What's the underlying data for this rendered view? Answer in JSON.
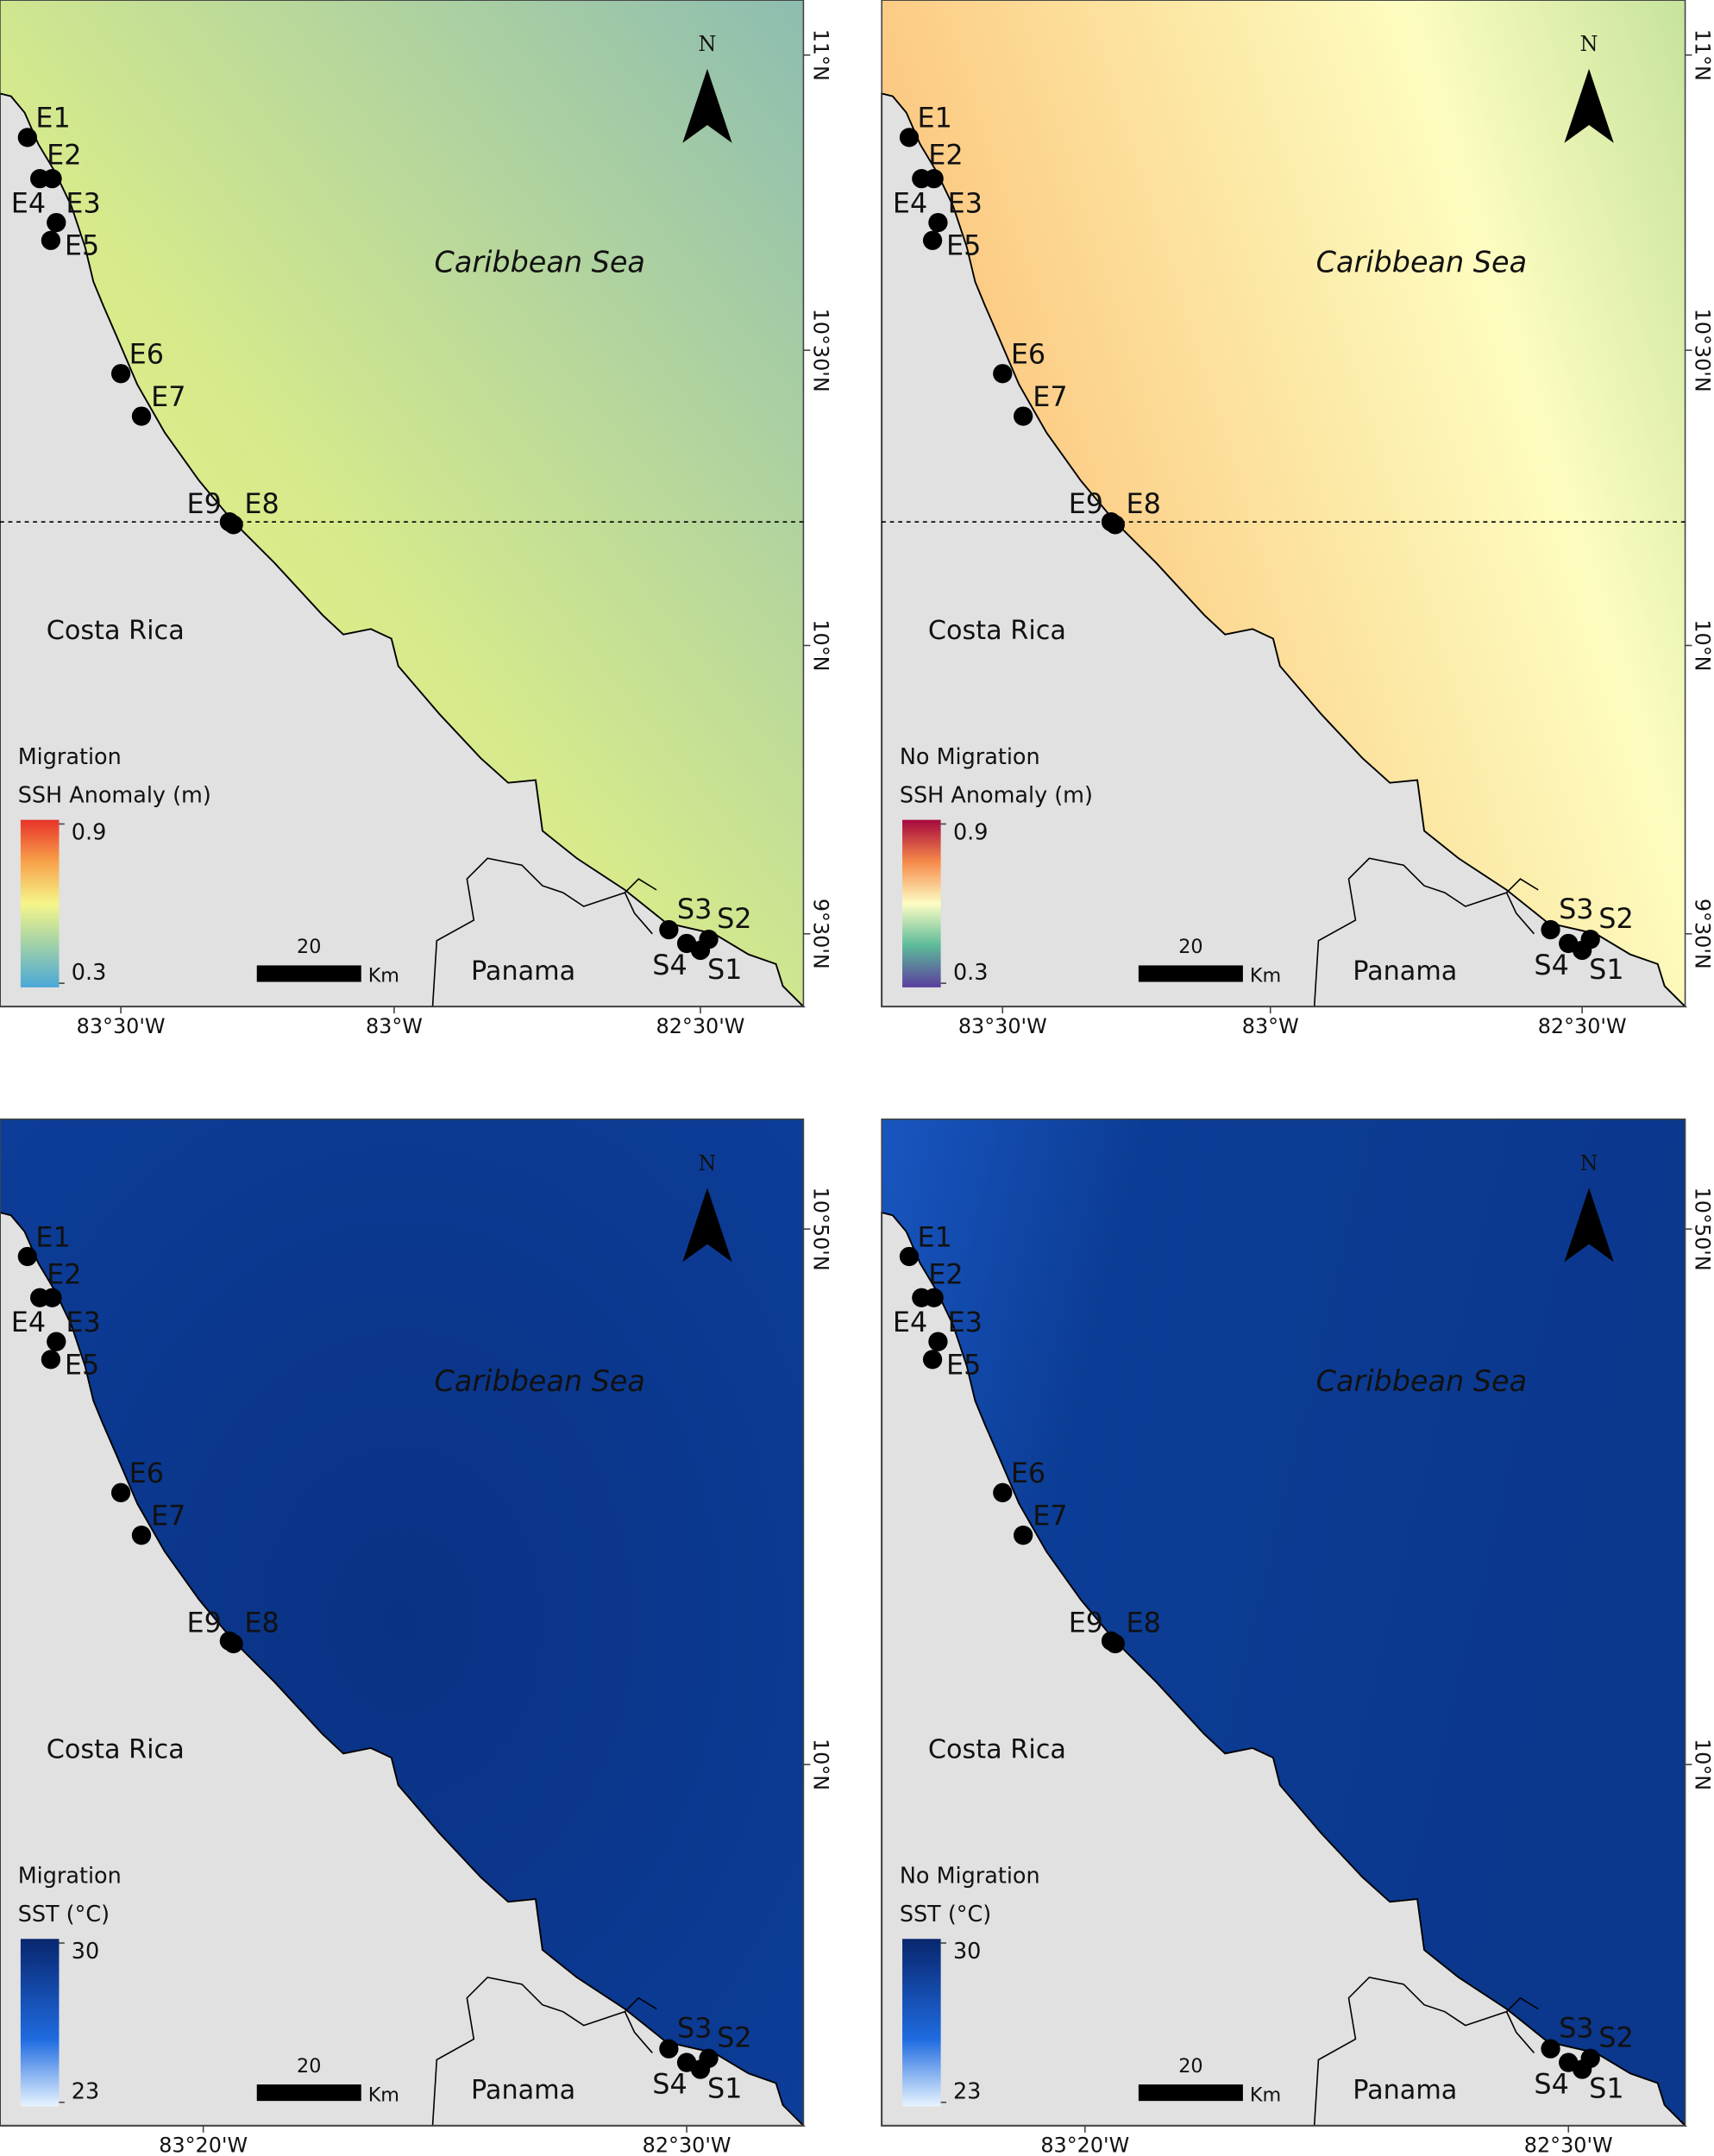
{
  "panels": [
    {
      "legend_title": "Migration",
      "variable": "SSH Anomaly (m)",
      "colorbar_max": 0.9,
      "colorbar_min": 0.3,
      "x_ticks": [
        "83°30'W",
        "83°W",
        "82°30'W"
      ],
      "y_ticks": [
        "11°N",
        "10°30'N",
        "10°N",
        "9°30'N"
      ]
    },
    {
      "legend_title": "No Migration",
      "variable": "SSH Anomaly (m)",
      "colorbar_max": 0.9,
      "colorbar_min": 0.3,
      "x_ticks": [
        "83°30'W",
        "83°W",
        "82°30'W"
      ],
      "y_ticks": [
        "11°N",
        "10°30'N",
        "10°N",
        "9°30'N"
      ]
    },
    {
      "legend_title": "Migration",
      "variable": "SST (°C)",
      "colorbar_max": 30,
      "colorbar_min": 23,
      "x_ticks": [
        "83°20'W",
        "82°30'W"
      ],
      "y_ticks": [
        "10°50'N",
        "10°N"
      ]
    },
    {
      "legend_title": "No Migration",
      "variable": "SST (°C)",
      "colorbar_max": 30,
      "colorbar_min": 23,
      "x_ticks": [
        "83°20'W",
        "82°30'W"
      ],
      "y_ticks": [
        "10°50'N",
        "10°N"
      ]
    }
  ],
  "sea_label": "Caribbean Sea",
  "land_labels": [
    "Costa Rica",
    "Panama"
  ],
  "north": "N",
  "scale_value": 20,
  "scale_unit": "Km",
  "stations": [
    "E1",
    "E2",
    "E3",
    "E4",
    "E5",
    "E6",
    "E7",
    "E8",
    "E9",
    "S1",
    "S2",
    "S3",
    "S4"
  ]
}
